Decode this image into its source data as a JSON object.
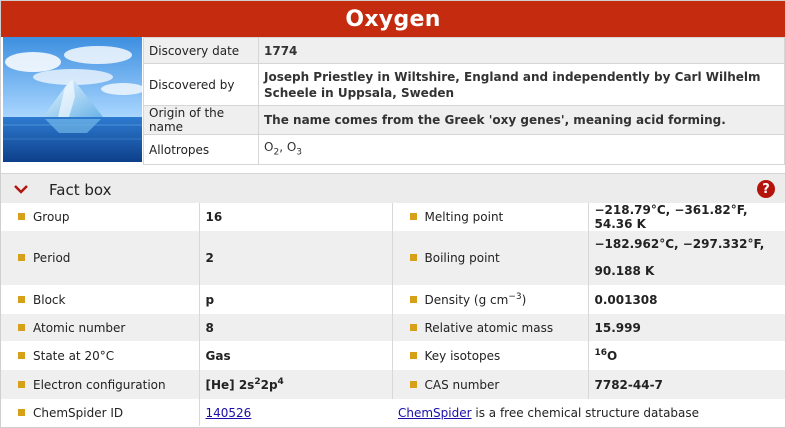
{
  "title": "Oxygen",
  "image_icon": "iceberg-image",
  "info": [
    {
      "label": "Discovery date",
      "value": "1774"
    },
    {
      "label": "Discovered by",
      "value": "Joseph Priestley in Wiltshire, England and independently by Carl Wilhelm Scheele in Uppsala, Sweden"
    },
    {
      "label": "Origin of the name",
      "value": "The name comes from the Greek 'oxy genes', meaning acid forming."
    },
    {
      "label": "Allotropes",
      "value_base1": "O",
      "value_sub1": "2",
      "value_sep": ", ",
      "value_base2": "O",
      "value_sub2": "3"
    }
  ],
  "factbox": {
    "title": "Fact box",
    "chevron_icon": "chevron-down-icon",
    "help_icon": "help-icon",
    "help_glyph": "?",
    "rows": {
      "group": {
        "label": "Group",
        "value": "16"
      },
      "melting": {
        "label": "Melting point",
        "value": "−218.79°C, −361.82°F, 54.36 K"
      },
      "period": {
        "label": "Period",
        "value": "2"
      },
      "boiling": {
        "label": "Boiling point",
        "value_line1": "−182.962°C, −297.332°F,",
        "value_line2": "90.188 K"
      },
      "block": {
        "label": "Block",
        "value": "p"
      },
      "density": {
        "label_pre": "Density (g cm",
        "label_sup": "−3",
        "label_post": ")",
        "value": "0.001308"
      },
      "atomic_number": {
        "label": "Atomic number",
        "value": "8"
      },
      "ram": {
        "label": "Relative atomic mass",
        "value": "15.999"
      },
      "state": {
        "label": "State at 20°C",
        "value": "Gas"
      },
      "isotopes": {
        "label": "Key isotopes",
        "value_sup": "16",
        "value_base": "O"
      },
      "electron": {
        "label": "Electron configuration",
        "value_pre": "[He] 2s",
        "value_sup1": "2",
        "value_mid": "2p",
        "value_sup2": "4"
      },
      "cas": {
        "label": "CAS number",
        "value": "7782-44-7"
      },
      "chemspider": {
        "label": "ChemSpider ID",
        "value": "140526",
        "link_text": "ChemSpider",
        "note": " is a free chemical structure database"
      }
    }
  },
  "colors": {
    "title_bg": "#c42b0f",
    "bullet": "#d6a019",
    "help_bg": "#b5140e",
    "link": "#1a0dab"
  }
}
